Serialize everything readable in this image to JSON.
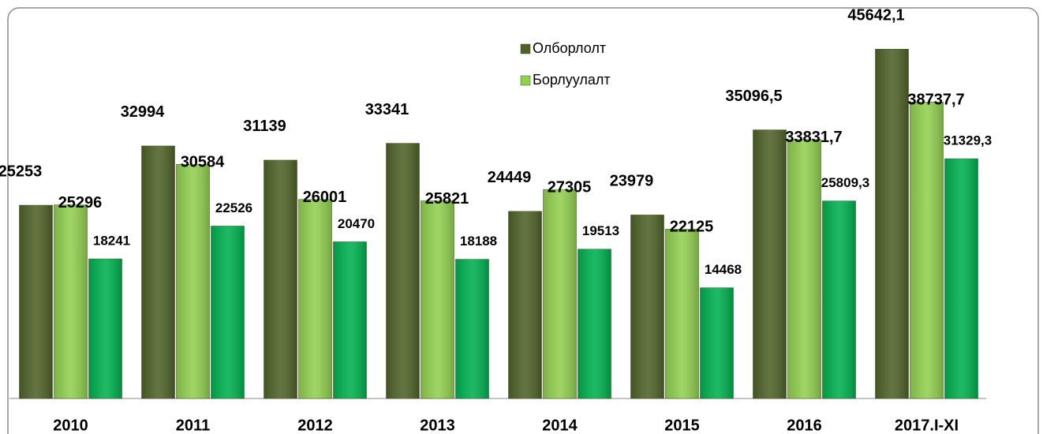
{
  "chart_data": {
    "type": "bar",
    "categories": [
      "2010",
      "2011",
      "2012",
      "2013",
      "2014",
      "2015",
      "2016",
      "2017.I-XI"
    ],
    "series": [
      {
        "name": "Олборлолт",
        "color": "#4f6228",
        "values": [
          25253,
          32994,
          31139,
          33341,
          24449,
          23979,
          35096.5,
          45642.1
        ],
        "value_labels": [
          "25253",
          "32994",
          "31139",
          "33341",
          "24449",
          "23979",
          "35096,5",
          "45642,1"
        ]
      },
      {
        "name": "Борлуулалт",
        "color": "#92d050",
        "values": [
          25296,
          30584,
          26001,
          25821,
          27305,
          22125,
          33831.7,
          38737.7
        ],
        "value_labels": [
          "25296",
          "30584",
          "26001",
          "25821",
          "27305",
          "22125",
          "33831,7",
          "38737,7"
        ]
      },
      {
        "color": "#00b050",
        "values": [
          18241,
          22526,
          20470,
          18188,
          19513,
          14468,
          25809.3,
          31329.3
        ],
        "value_labels": [
          "18241",
          "22526",
          "20470",
          "18188",
          "19513",
          "14468",
          "25809,3",
          "31329,3"
        ]
      }
    ],
    "ylim": [
      0,
      50000
    ],
    "legend": "top"
  }
}
